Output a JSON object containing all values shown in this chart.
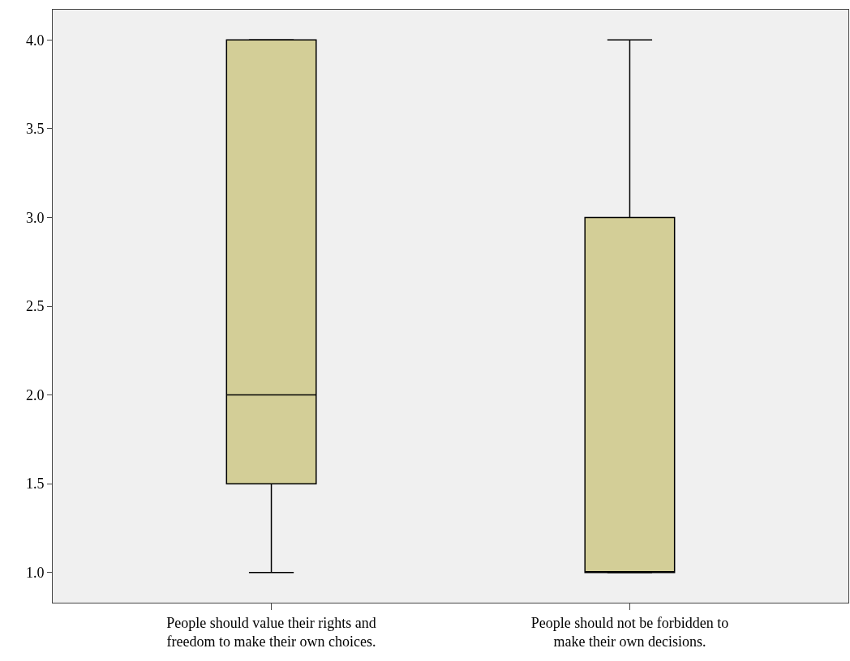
{
  "chart_data": {
    "type": "box",
    "categories": [
      "People should value their rights and freedom to make their own choices.",
      "People should not be forbidden to make their own decisions."
    ],
    "boxes": [
      {
        "low": 1,
        "q1": 1.5,
        "median": 2,
        "q3": 4,
        "high": 4
      },
      {
        "low": 1,
        "q1": 1,
        "median": 1,
        "q3": 3,
        "high": 4
      }
    ],
    "color": "#d3ce97",
    "ylim": [
      0.83,
      4.17
    ],
    "yticks": [
      {
        "value": 1,
        "label": "1.0"
      },
      {
        "value": 1.5,
        "label": "1.5"
      },
      {
        "value": 2,
        "label": "2.0"
      },
      {
        "value": 2.5,
        "label": "2.5"
      },
      {
        "value": 3,
        "label": "3.0"
      },
      {
        "value": 3.5,
        "label": "3.5"
      },
      {
        "value": 4,
        "label": "4.0"
      }
    ],
    "grid": false
  }
}
